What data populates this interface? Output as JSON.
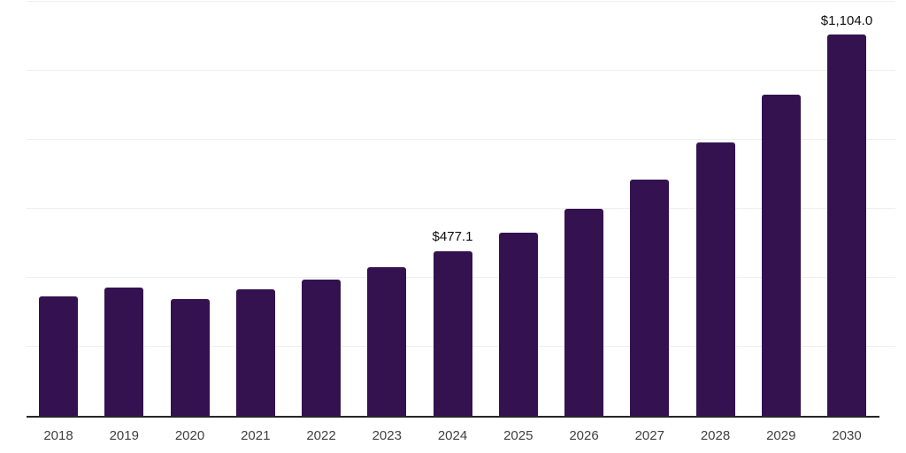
{
  "chart_data": {
    "type": "bar",
    "title": "",
    "xlabel": "",
    "ylabel": "",
    "ylim": [
      0,
      1200
    ],
    "gridline_step": 200,
    "grid": true,
    "legend": false,
    "bar_color": "#341250",
    "gridline_color": "#efefef",
    "axis_line_color": "#262626",
    "tick_label_color": "#404040",
    "value_label_color": "#0d0d0d",
    "categories": [
      "2018",
      "2019",
      "2020",
      "2021",
      "2022",
      "2023",
      "2024",
      "2025",
      "2026",
      "2027",
      "2028",
      "2029",
      "2030"
    ],
    "values": [
      346,
      372,
      339,
      367,
      395,
      431,
      477.1,
      531,
      600,
      685,
      792,
      930,
      1104
    ],
    "points": [
      {
        "category": "2018",
        "value": 346,
        "label": null
      },
      {
        "category": "2019",
        "value": 372,
        "label": null
      },
      {
        "category": "2020",
        "value": 339,
        "label": null
      },
      {
        "category": "2021",
        "value": 367,
        "label": null
      },
      {
        "category": "2022",
        "value": 395,
        "label": null
      },
      {
        "category": "2023",
        "value": 431,
        "label": null
      },
      {
        "category": "2024",
        "value": 477.1,
        "label": "$477.1"
      },
      {
        "category": "2025",
        "value": 531,
        "label": null
      },
      {
        "category": "2026",
        "value": 600,
        "label": null
      },
      {
        "category": "2027",
        "value": 685,
        "label": null
      },
      {
        "category": "2028",
        "value": 792,
        "label": null
      },
      {
        "category": "2029",
        "value": 930,
        "label": null
      },
      {
        "category": "2030",
        "value": 1104,
        "label": "$1,104.0"
      }
    ]
  }
}
